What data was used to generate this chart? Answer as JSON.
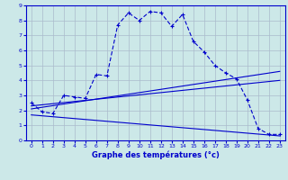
{
  "xlabel": "Graphe des températures (°c)",
  "bg_color": "#cce8e8",
  "grid_color": "#aabbcc",
  "line_color": "#0000cc",
  "xlim": [
    -0.5,
    23.5
  ],
  "ylim": [
    0,
    9
  ],
  "xticks": [
    0,
    1,
    2,
    3,
    4,
    5,
    6,
    7,
    8,
    9,
    10,
    11,
    12,
    13,
    14,
    15,
    16,
    17,
    18,
    19,
    20,
    21,
    22,
    23
  ],
  "yticks": [
    0,
    1,
    2,
    3,
    4,
    5,
    6,
    7,
    8,
    9
  ],
  "series1_x": [
    0,
    1,
    2,
    3,
    4,
    5,
    6,
    7,
    8,
    9,
    10,
    11,
    12,
    13,
    14,
    15,
    16,
    17,
    18,
    19,
    20,
    21,
    22,
    23
  ],
  "series1_y": [
    2.5,
    1.9,
    1.8,
    3.0,
    2.9,
    2.8,
    4.4,
    4.3,
    7.7,
    8.5,
    8.0,
    8.6,
    8.5,
    7.6,
    8.4,
    6.6,
    5.9,
    5.0,
    4.5,
    4.1,
    2.7,
    0.8,
    0.4,
    0.4
  ],
  "series2_x": [
    0,
    23
  ],
  "series2_y": [
    2.1,
    4.6
  ],
  "series3_x": [
    0,
    23
  ],
  "series3_y": [
    2.3,
    4.0
  ],
  "series4_x": [
    0,
    23
  ],
  "series4_y": [
    1.7,
    0.3
  ]
}
